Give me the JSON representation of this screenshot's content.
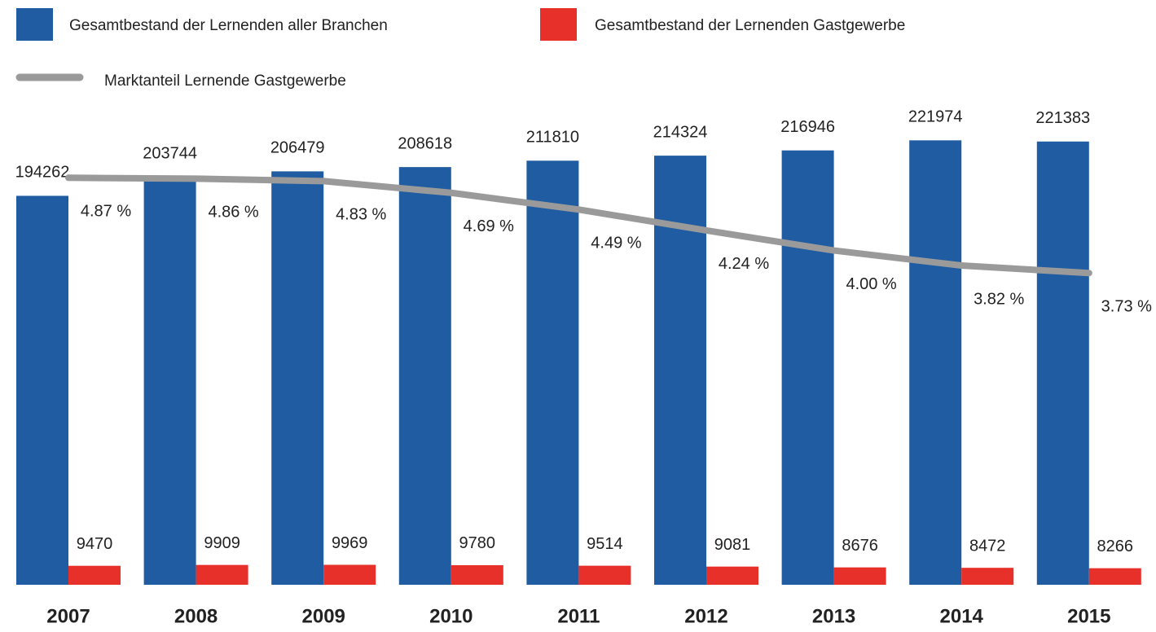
{
  "chart_data": {
    "type": "bar_line",
    "categories": [
      "2007",
      "2008",
      "2009",
      "2010",
      "2011",
      "2012",
      "2013",
      "2014",
      "2015"
    ],
    "series": [
      {
        "name": "Gesamtbestand der Lernenden aller Branchen",
        "color": "#1f5ca1",
        "type": "bar",
        "values": [
          194262,
          203744,
          206479,
          208618,
          211810,
          214324,
          216946,
          221974,
          221383
        ]
      },
      {
        "name": "Gesamtbestand der Lernenden Gastgewerbe",
        "color": "#e8302a",
        "type": "bar",
        "values": [
          9470,
          9909,
          9969,
          9780,
          9514,
          9081,
          8676,
          8472,
          8266
        ]
      },
      {
        "name": "Marktanteil Lernende Gastgewerbe",
        "color": "#9a9a9a",
        "type": "line",
        "axis": "y2",
        "values": [
          4.87,
          4.86,
          4.83,
          4.69,
          4.49,
          4.24,
          4.0,
          3.82,
          3.73
        ],
        "value_labels": [
          "4.87 %",
          "4.86 %",
          "4.83 %",
          "4.69 %",
          "4.49 %",
          "4.24 %",
          "4.00 %",
          "3.82 %",
          "3.73 %"
        ]
      }
    ],
    "ylim": [
      0,
      240000
    ],
    "y2lim": [
      0,
      5.75
    ],
    "grid": false
  }
}
